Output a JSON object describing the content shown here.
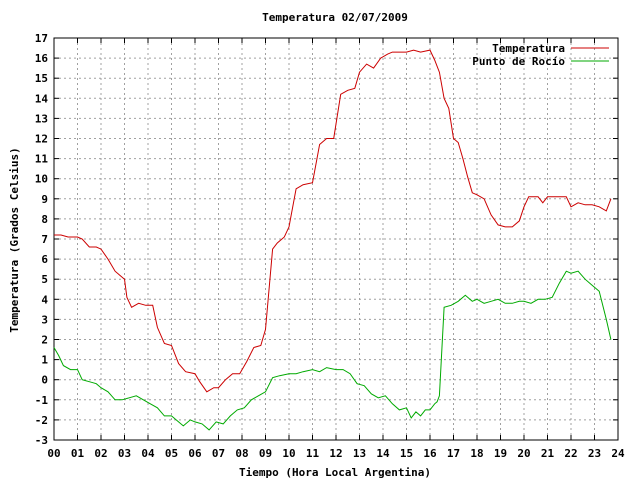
{
  "chart_data": {
    "type": "line",
    "title": "Temperatura 02/07/2009",
    "xlabel": "Tiempo (Hora Local Argentina)",
    "ylabel": "Temperatura (Grados Celsius)",
    "xlim": [
      0,
      24
    ],
    "ylim": [
      -3,
      17
    ],
    "x_ticks": [
      "00",
      "01",
      "02",
      "03",
      "04",
      "05",
      "06",
      "07",
      "08",
      "09",
      "10",
      "11",
      "12",
      "13",
      "14",
      "15",
      "16",
      "17",
      "18",
      "19",
      "20",
      "21",
      "22",
      "23",
      "24"
    ],
    "y_ticks": [
      "-3",
      "-2",
      "-1",
      "0",
      "1",
      "2",
      "3",
      "4",
      "5",
      "6",
      "7",
      "8",
      "9",
      "10",
      "11",
      "12",
      "13",
      "14",
      "15",
      "16",
      "17"
    ],
    "grid": true,
    "legend_position": "top-right",
    "series": [
      {
        "name": "Temperatura",
        "color": "#cc0000",
        "x": [
          0,
          0.3,
          0.6,
          1,
          1.2,
          1.5,
          1.8,
          2,
          2.3,
          2.6,
          2.8,
          3,
          3.1,
          3.3,
          3.6,
          3.9,
          4.2,
          4.4,
          4.7,
          5,
          5.3,
          5.6,
          6,
          6.2,
          6.5,
          6.8,
          7,
          7.3,
          7.6,
          7.9,
          8.2,
          8.5,
          8.8,
          9,
          9.3,
          9.5,
          9.8,
          10,
          10.3,
          10.6,
          11,
          11.3,
          11.6,
          11.9,
          12.2,
          12.5,
          12.8,
          13,
          13.3,
          13.6,
          13.9,
          14.2,
          14.4,
          14.7,
          15,
          15.3,
          15.6,
          16,
          16.2,
          16.4,
          16.6,
          16.8,
          17,
          17.2,
          17.4,
          17.6,
          17.8,
          18,
          18.3,
          18.6,
          18.9,
          19.2,
          19.5,
          19.8,
          20,
          20.2,
          20.4,
          20.6,
          20.8,
          21,
          21.3,
          21.6,
          21.8,
          22,
          22.3,
          22.6,
          22.9,
          23.2,
          23.5,
          23.7
        ],
        "y": [
          7.2,
          7.2,
          7.1,
          7.1,
          7.0,
          6.6,
          6.6,
          6.5,
          6.0,
          5.4,
          5.2,
          5.0,
          4.1,
          3.6,
          3.8,
          3.7,
          3.7,
          2.6,
          1.8,
          1.7,
          0.8,
          0.4,
          0.3,
          -0.1,
          -0.6,
          -0.4,
          -0.4,
          0.0,
          0.3,
          0.3,
          0.9,
          1.6,
          1.7,
          2.5,
          6.5,
          6.8,
          7.1,
          7.6,
          9.5,
          9.7,
          9.8,
          11.7,
          12.0,
          12.0,
          14.2,
          14.4,
          14.5,
          15.3,
          15.7,
          15.5,
          16.0,
          16.2,
          16.3,
          16.3,
          16.3,
          16.4,
          16.3,
          16.4,
          15.9,
          15.3,
          14.0,
          13.5,
          12.0,
          11.8,
          11.0,
          10.1,
          9.3,
          9.2,
          9.0,
          8.2,
          7.7,
          7.6,
          7.6,
          7.9,
          8.6,
          9.1,
          9.1,
          9.1,
          8.8,
          9.1,
          9.1,
          9.1,
          9.1,
          8.6,
          8.8,
          8.7,
          8.7,
          8.6,
          8.4,
          9.0
        ]
      },
      {
        "name": "Punto de Rocío",
        "color": "#00aa00",
        "x": [
          0,
          0.2,
          0.4,
          0.7,
          1,
          1.2,
          1.5,
          1.8,
          2,
          2.3,
          2.6,
          2.9,
          3.2,
          3.5,
          3.8,
          4.1,
          4.4,
          4.7,
          5,
          5.2,
          5.5,
          5.8,
          6,
          6.3,
          6.6,
          6.9,
          7.2,
          7.5,
          7.8,
          8.1,
          8.4,
          8.7,
          9,
          9.3,
          9.6,
          10,
          10.3,
          10.6,
          11,
          11.3,
          11.6,
          12,
          12.3,
          12.6,
          12.9,
          13.2,
          13.5,
          13.8,
          14.1,
          14.4,
          14.7,
          15,
          15.2,
          15.4,
          15.6,
          15.8,
          16,
          16.2,
          16.3,
          16.4,
          16.6,
          16.9,
          17.2,
          17.5,
          17.8,
          18,
          18.3,
          18.6,
          18.9,
          19.2,
          19.5,
          19.8,
          20,
          20.3,
          20.6,
          20.9,
          21.2,
          21.5,
          21.8,
          22,
          22.3,
          22.6,
          22.9,
          23.2,
          23.5,
          23.7
        ],
        "y": [
          1.6,
          1.2,
          0.7,
          0.5,
          0.5,
          0.0,
          -0.1,
          -0.2,
          -0.4,
          -0.6,
          -1.0,
          -1.0,
          -0.9,
          -0.8,
          -1.0,
          -1.2,
          -1.4,
          -1.8,
          -1.8,
          -2.0,
          -2.3,
          -2.0,
          -2.1,
          -2.2,
          -2.5,
          -2.1,
          -2.2,
          -1.8,
          -1.5,
          -1.4,
          -1.0,
          -0.8,
          -0.6,
          0.1,
          0.2,
          0.3,
          0.3,
          0.4,
          0.5,
          0.4,
          0.6,
          0.5,
          0.5,
          0.3,
          -0.2,
          -0.3,
          -0.7,
          -0.9,
          -0.8,
          -1.2,
          -1.5,
          -1.4,
          -1.9,
          -1.6,
          -1.8,
          -1.5,
          -1.5,
          -1.2,
          -1.1,
          -0.8,
          3.6,
          3.7,
          3.9,
          4.2,
          3.9,
          4.0,
          3.8,
          3.9,
          4.0,
          3.8,
          3.8,
          3.9,
          3.9,
          3.8,
          4.0,
          4.0,
          4.1,
          4.8,
          5.4,
          5.3,
          5.4,
          5.0,
          4.7,
          4.4,
          3.0,
          2.0
        ]
      }
    ]
  }
}
